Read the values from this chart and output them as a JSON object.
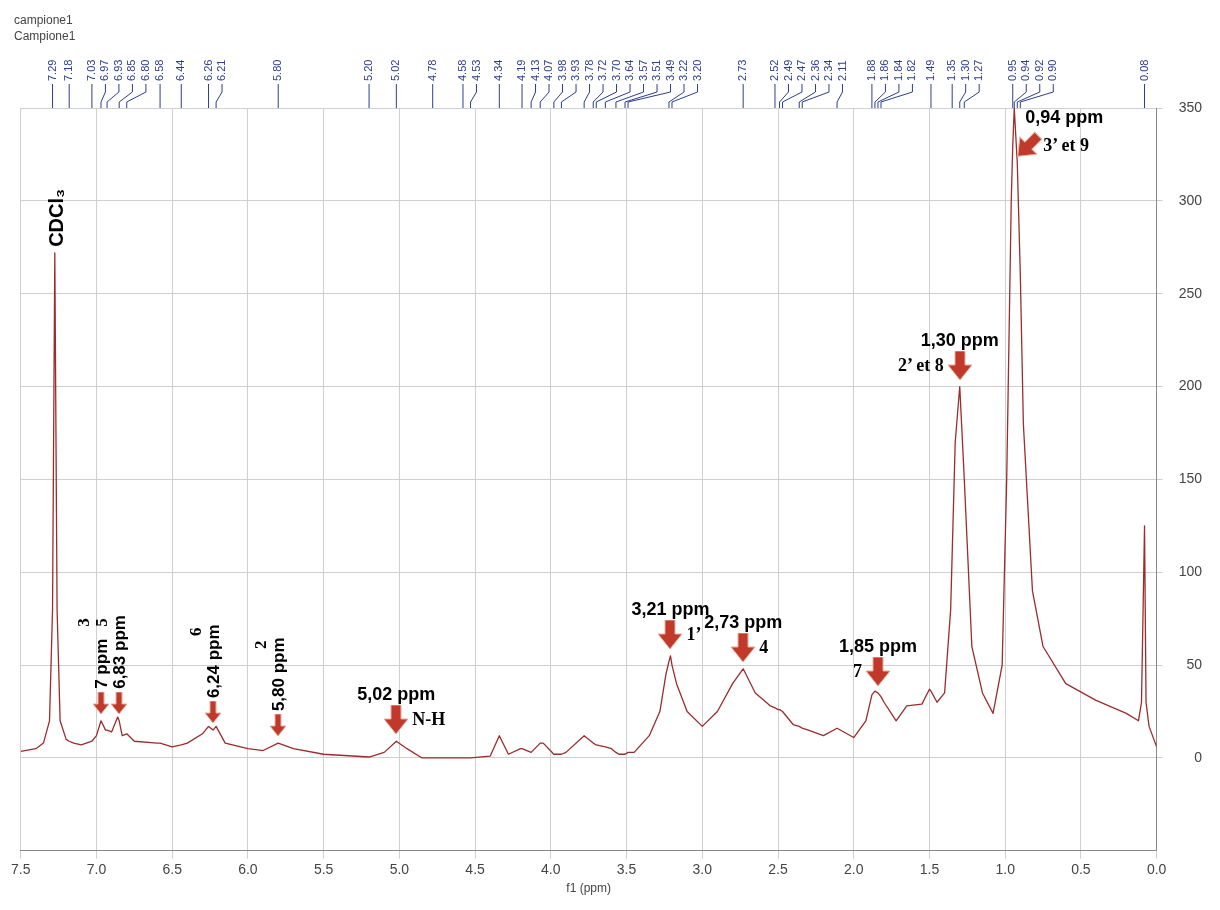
{
  "chart_data": {
    "type": "line",
    "title": "campione1",
    "subtitle": "Campione1",
    "xlabel": "f1 (ppm)",
    "x": [
      7.5,
      7.4,
      7.35,
      7.31,
      7.29,
      7.275,
      7.26,
      7.24,
      7.2,
      7.18,
      7.15,
      7.1,
      7.03,
      7.0,
      6.97,
      6.94,
      6.93,
      6.9,
      6.86,
      6.85,
      6.83,
      6.8,
      6.75,
      6.6,
      6.58,
      6.5,
      6.44,
      6.4,
      6.3,
      6.26,
      6.23,
      6.21,
      6.15,
      6.0,
      5.9,
      5.8,
      5.7,
      5.5,
      5.2,
      5.1,
      5.02,
      4.95,
      4.85,
      4.78,
      4.6,
      4.58,
      4.53,
      4.4,
      4.34,
      4.28,
      4.2,
      4.19,
      4.13,
      4.07,
      4.05,
      3.98,
      3.93,
      3.9,
      3.78,
      3.72,
      3.7,
      3.64,
      3.6,
      3.57,
      3.55,
      3.51,
      3.49,
      3.45,
      3.35,
      3.28,
      3.24,
      3.22,
      3.21,
      3.2,
      3.17,
      3.1,
      3.0,
      2.9,
      2.8,
      2.73,
      2.65,
      2.55,
      2.52,
      2.5,
      2.49,
      2.47,
      2.4,
      2.36,
      2.34,
      2.3,
      2.2,
      2.11,
      2.0,
      1.92,
      1.88,
      1.87,
      1.86,
      1.84,
      1.82,
      1.8,
      1.72,
      1.65,
      1.55,
      1.5,
      1.49,
      1.45,
      1.4,
      1.36,
      1.35,
      1.33,
      1.3,
      1.27,
      1.22,
      1.15,
      1.08,
      1.02,
      0.99,
      0.96,
      0.95,
      0.94,
      0.92,
      0.9,
      0.88,
      0.82,
      0.75,
      0.6,
      0.4,
      0.2,
      0.12,
      0.1,
      0.08,
      0.07,
      0.05,
      0.0
    ],
    "values": [
      3.5,
      5,
      8,
      20,
      80,
      272,
      80,
      20,
      10,
      9,
      8,
      7,
      9,
      12,
      20,
      15,
      15,
      14,
      22,
      20,
      12,
      13,
      9,
      8,
      8,
      6,
      7,
      8,
      13,
      17,
      15,
      17,
      8,
      5,
      4,
      8,
      5,
      2,
      0.5,
      3,
      9,
      5,
      0,
      0,
      0,
      0,
      0,
      1,
      12,
      2,
      5,
      5,
      3,
      8,
      8,
      2,
      2,
      3,
      12,
      8,
      7,
      6,
      5,
      3,
      2,
      2,
      3,
      3,
      12,
      25,
      45,
      52,
      55,
      50,
      40,
      25,
      17,
      25,
      40,
      48,
      35,
      28,
      27,
      26,
      26,
      25,
      18,
      17,
      16,
      15,
      12,
      16,
      11,
      20,
      34,
      35,
      36,
      35,
      33,
      30,
      20,
      28,
      29,
      37,
      36,
      30,
      35,
      80,
      110,
      170,
      200,
      150,
      60,
      35,
      24,
      50,
      150,
      300,
      330,
      350,
      320,
      260,
      180,
      90,
      60,
      40,
      31,
      24,
      20,
      30,
      125,
      30,
      17,
      6
    ],
    "color": "#9b2c2c",
    "xlim": [
      7.5,
      0.0
    ],
    "xticks": [
      7.5,
      {
        "value": 7,
        "label": "7.0"
      },
      6.5,
      {
        "value": 6,
        "label": "6.0"
      },
      5.5,
      {
        "value": 5,
        "label": "5.0"
      },
      4.5,
      {
        "value": 4,
        "label": "4.0"
      },
      3.5,
      {
        "value": 3,
        "label": "3.0"
      },
      2.5,
      {
        "value": 2,
        "label": "2.0"
      },
      1.5,
      {
        "value": 1,
        "label": "1.0"
      },
      0.5,
      {
        "value": 0,
        "label": "0.0"
      }
    ],
    "ylim": [
      -50,
      350
    ],
    "yticks": [
      0,
      50,
      100,
      150,
      200,
      250,
      300,
      350
    ],
    "grid": true,
    "annotations": [
      {
        "text": "CDCl₃",
        "x": 7.275,
        "y": 272
      },
      {
        "text": "7 ppm",
        "x": 6.97,
        "y": 20
      },
      "3",
      {
        "text": "6,83 ppm",
        "x": 6.85,
        "y": 20
      },
      "5",
      {
        "text": "6,24 ppm",
        "x": 6.23,
        "y": 15
      },
      "6",
      {
        "text": "5,80 ppm",
        "x": 5.8,
        "y": 8
      },
      "2",
      {
        "text": "5,02 ppm",
        "x": 5.02,
        "y": 9
      },
      "N-H",
      {
        "text": "3,21 ppm",
        "x": 3.21,
        "y": 55
      },
      "1’",
      {
        "text": "2,73 ppm",
        "x": 2.73,
        "y": 48
      },
      "4",
      {
        "text": "1,85 ppm",
        "x": 1.84,
        "y": 35
      },
      "7",
      {
        "text": "1,30 ppm",
        "x": 1.3,
        "y": 200
      },
      "2’ et 8",
      {
        "text": "0,94 ppm",
        "x": 0.92,
        "y": 320
      },
      "3’ et 9",
      {
        "text": "7.29",
        "x": 7.29
      },
      {
        "text": "7.18",
        "x": 7.18
      },
      {
        "text": "7.03",
        "x": 7.03
      },
      {
        "text": "6.97",
        "x": 6.97
      },
      {
        "text": "6.93",
        "x": 6.93
      },
      {
        "text": "6.85",
        "x": 6.85
      },
      {
        "text": "6.80",
        "x": 6.8
      },
      {
        "text": "6.58",
        "x": 6.58
      },
      {
        "text": "6.44",
        "x": 6.44
      },
      {
        "text": "6.26",
        "x": 6.26
      },
      {
        "text": "6.21",
        "x": 6.21
      },
      {
        "text": "5.80",
        "x": 5.8
      },
      {
        "text": "5.20",
        "x": 5.2
      },
      {
        "text": "5.02",
        "x": 5.02
      },
      {
        "text": "4.78",
        "x": 4.78
      },
      {
        "text": "4.58",
        "x": 4.58
      },
      {
        "text": "4.53",
        "x": 4.53
      },
      {
        "text": "4.34",
        "x": 4.34
      },
      {
        "text": "4.19",
        "x": 4.19
      },
      {
        "text": "4.13",
        "x": 4.13
      },
      {
        "text": "4.07",
        "x": 4.07
      },
      {
        "text": "3.98",
        "x": 3.98
      },
      {
        "text": "3.93",
        "x": 3.93
      },
      {
        "text": "3.78",
        "x": 3.78
      },
      {
        "text": "3.72",
        "x": 3.72
      },
      {
        "text": "3.70",
        "x": 3.7
      },
      {
        "text": "3.64",
        "x": 3.64
      },
      {
        "text": "3.57",
        "x": 3.57
      },
      {
        "text": "3.51",
        "x": 3.51
      },
      {
        "text": "3.49",
        "x": 3.49
      },
      {
        "text": "3.22",
        "x": 3.22
      },
      {
        "text": "3.20",
        "x": 3.2
      },
      {
        "text": "2.73",
        "x": 2.73
      },
      {
        "text": "2.52",
        "x": 2.52
      },
      {
        "text": "2.49",
        "x": 2.49
      },
      {
        "text": "2.47",
        "x": 2.47
      },
      {
        "text": "2.36",
        "x": 2.36
      },
      {
        "text": "2.34",
        "x": 2.34
      },
      {
        "text": "2.11",
        "x": 2.11
      },
      {
        "text": "1.88",
        "x": 1.88
      },
      {
        "text": "1.86",
        "x": 1.86
      },
      {
        "text": "1.84",
        "x": 1.84
      },
      {
        "text": "1.82",
        "x": 1.82
      },
      {
        "text": "1.49",
        "x": 1.49
      },
      {
        "text": "1.35",
        "x": 1.35
      },
      {
        "text": "1.30",
        "x": 1.3
      },
      {
        "text": "1.27",
        "x": 1.27
      },
      {
        "text": "0.95",
        "x": 0.95
      },
      {
        "text": "0.94",
        "x": 0.94
      },
      {
        "text": "0.92",
        "x": 0.92
      },
      {
        "text": "0.90",
        "x": 0.9
      },
      {
        "text": "0.08",
        "x": 0.08
      }
    ]
  }
}
